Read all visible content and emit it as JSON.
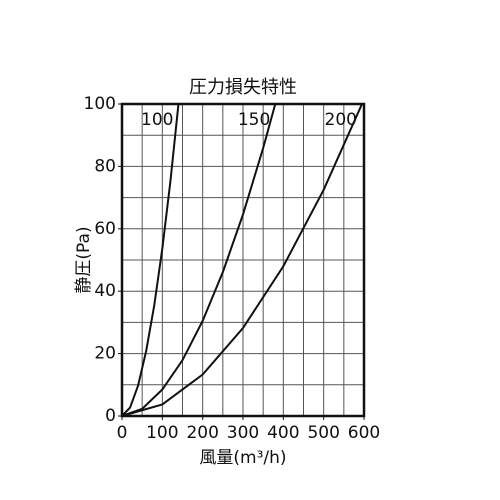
{
  "chart_data": {
    "type": "line",
    "title": "圧力損失特性",
    "x_label": "風量(m³/h)",
    "y_label": "静圧(Pa)",
    "color": "#111111",
    "series": [
      {
        "name": "100",
        "x": [
          0,
          20,
          40,
          60,
          80,
          100,
          120,
          140
        ],
        "values": [
          0,
          2.7,
          9.8,
          20.9,
          35.5,
          53.7,
          75.2,
          100
        ]
      },
      {
        "name": "150",
        "x": [
          0,
          50,
          100,
          150,
          200,
          250,
          300,
          350,
          380
        ],
        "values": [
          0,
          2.3,
          8.5,
          17.9,
          30.5,
          46.1,
          64.6,
          85.9,
          100
        ]
      },
      {
        "name": "200",
        "x": [
          0,
          100,
          200,
          300,
          400,
          500,
          595
        ],
        "values": [
          0,
          3.7,
          13.3,
          28.2,
          48.0,
          72.5,
          100
        ]
      }
    ],
    "xlim": [
      0,
      600
    ],
    "ylim": [
      0,
      100
    ],
    "xticks": [
      0,
      100,
      200,
      300,
      400,
      500,
      600
    ],
    "yticks": [
      0,
      20,
      40,
      60,
      80,
      100
    ],
    "xgrid": [
      0,
      50,
      100,
      150,
      200,
      250,
      300,
      350,
      400,
      450,
      500,
      550,
      600
    ],
    "ygrid": [
      0,
      10,
      20,
      30,
      40,
      50,
      60,
      70,
      80,
      90,
      100
    ],
    "grid": true
  }
}
